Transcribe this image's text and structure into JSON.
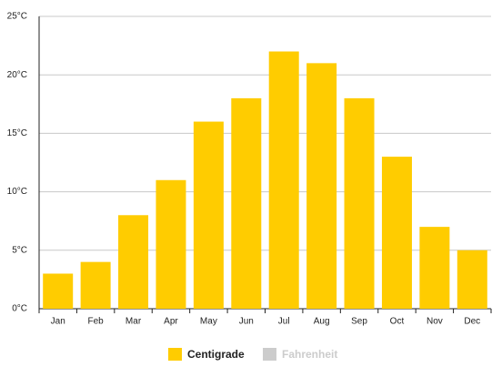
{
  "chart_data": {
    "type": "bar",
    "categories": [
      "Jan",
      "Feb",
      "Mar",
      "Apr",
      "May",
      "Jun",
      "Jul",
      "Aug",
      "Sep",
      "Oct",
      "Nov",
      "Dec"
    ],
    "series": [
      {
        "name": "Centigrade",
        "color": "#ffcc00",
        "values": [
          3,
          4,
          8,
          11,
          16,
          18,
          22,
          21,
          18,
          13,
          7,
          5
        ]
      }
    ],
    "hidden_series": [
      {
        "name": "Fahrenheit",
        "color": "#cccccc"
      }
    ],
    "ylim": [
      0,
      25
    ],
    "yticks": [
      {
        "value": 0,
        "label": "0°C"
      },
      {
        "value": 5,
        "label": "5°C"
      },
      {
        "value": 10,
        "label": "10°C"
      },
      {
        "value": 15,
        "label": "15°C"
      },
      {
        "value": 20,
        "label": "20°C"
      },
      {
        "value": 25,
        "label": "25°C"
      }
    ],
    "grid": true,
    "legend": "bottom"
  }
}
